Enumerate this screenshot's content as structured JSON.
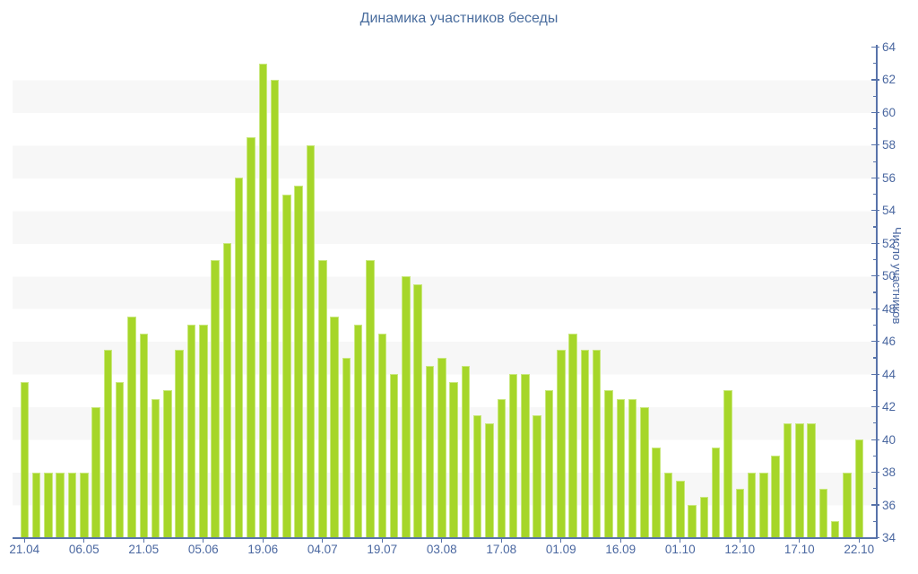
{
  "title": "Динамика участников беседы",
  "chart_data": {
    "type": "bar",
    "title": "Динамика участников беседы",
    "xlabel": "",
    "ylabel": "Число участников",
    "ylim": [
      34,
      64
    ],
    "y_major_tick_step": 2,
    "y_minor_tick_step": 1,
    "y_tick_labels": [
      "34",
      "36",
      "38",
      "40",
      "42",
      "44",
      "46",
      "48",
      "50",
      "52",
      "54",
      "56",
      "58",
      "60",
      "62",
      "64"
    ],
    "grid": "alternating horizontal bands, gray on even 2-unit stripes (36-38, 40-42, ...)",
    "legend": "none",
    "x_tick_labels": [
      "21.04",
      "06.05",
      "21.05",
      "05.06",
      "19.06",
      "04.07",
      "19.07",
      "03.08",
      "17.08",
      "01.09",
      "16.09",
      "01.10",
      "12.10",
      "17.10",
      "22.10"
    ],
    "x_tick_every_n_bars": 5,
    "values": [
      43.5,
      38,
      38,
      38,
      38,
      38,
      42,
      45.5,
      43.5,
      47.5,
      46.5,
      42.5,
      43,
      45.5,
      47,
      47,
      51,
      52,
      56,
      58.5,
      63,
      62,
      55,
      55.5,
      58,
      51,
      47.5,
      45,
      47,
      51,
      46.5,
      44,
      50,
      49.5,
      44.5,
      45,
      43.5,
      44.5,
      41.5,
      41,
      42.5,
      44,
      44,
      41.5,
      43,
      45.5,
      46.5,
      45.5,
      45.5,
      43,
      42.5,
      42.5,
      42,
      39.5,
      38,
      37.5,
      36,
      36.5,
      39.5,
      43,
      37,
      38,
      38,
      39,
      41,
      41,
      41,
      37,
      35,
      38,
      40
    ]
  },
  "colors": {
    "bar_fill": "#a6d629",
    "bar_edge": "#c9e87e",
    "axis_line": "#5873aa",
    "tick_text": "#4a67a0",
    "title_text": "#4a6d9e",
    "band_gray": "#f7f7f7",
    "background": "#ffffff"
  }
}
